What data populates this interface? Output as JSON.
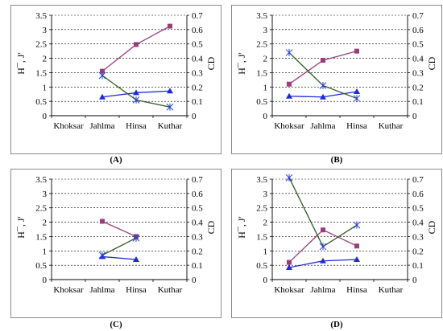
{
  "chart_data": [
    {
      "type": "line",
      "caption": "(A)",
      "categories": [
        "Khoksar",
        "Jahlma",
        "Hinsa",
        "Kuthar"
      ],
      "ylabel_left": "H¯, J'",
      "ylabel_right": "CD",
      "ylim_left": [
        0,
        3.5
      ],
      "ylim_right": [
        0,
        0.7
      ],
      "yticks_left": [
        "0",
        "0.5",
        "1",
        "1.5",
        "2",
        "2.5",
        "3",
        "3.5"
      ],
      "yticks_right": [
        "0",
        "0.1",
        "0.2",
        "0.3",
        "0.4",
        "0.5",
        "0.6",
        "0.7"
      ],
      "grid": true,
      "series": [
        {
          "axis": "left",
          "color": "#9b3d7a",
          "marker": "square",
          "values": [
            null,
            1.55,
            2.48,
            3.12
          ]
        },
        {
          "axis": "left",
          "color": "#1f2bd6",
          "marker": "triangle",
          "values": [
            null,
            0.65,
            0.8,
            0.86
          ]
        },
        {
          "axis": "right",
          "color": "#2e5e1e",
          "marker": "star",
          "values": [
            null,
            0.28,
            0.11,
            0.06
          ]
        }
      ]
    },
    {
      "type": "line",
      "caption": "(B)",
      "categories": [
        "Khoksar",
        "Jahlma",
        "Hinsa",
        "Kuthar"
      ],
      "ylabel_left": "H¯, J'",
      "ylabel_right": "CD",
      "ylim_left": [
        0,
        3.5
      ],
      "ylim_right": [
        0,
        0.7
      ],
      "yticks_left": [
        "0",
        "0.5",
        "1",
        "1.5",
        "2",
        "2.5",
        "3",
        "3.5"
      ],
      "yticks_right": [
        "0",
        "0.1",
        "0.2",
        "0.3",
        "0.4",
        "0.5",
        "0.6",
        "0.7"
      ],
      "grid": true,
      "series": [
        {
          "axis": "left",
          "color": "#9b3d7a",
          "marker": "square",
          "values": [
            1.1,
            1.93,
            2.25,
            null
          ]
        },
        {
          "axis": "left",
          "color": "#1f2bd6",
          "marker": "triangle",
          "values": [
            0.68,
            0.65,
            0.84,
            null
          ]
        },
        {
          "axis": "right",
          "color": "#2e5e1e",
          "marker": "star",
          "values": [
            0.44,
            0.21,
            0.12,
            null
          ]
        }
      ]
    },
    {
      "type": "line",
      "caption": "(C)",
      "categories": [
        "Khoksar",
        "Jahlma",
        "Hinsa",
        "Kuthar"
      ],
      "ylabel_left": "H¯, J'",
      "ylabel_right": "CD",
      "ylim_left": [
        0,
        3.5
      ],
      "ylim_right": [
        0,
        0.7
      ],
      "yticks_left": [
        "0",
        "0.5",
        "1",
        "1.5",
        "2",
        "2.5",
        "3",
        "3.5"
      ],
      "yticks_right": [
        "0",
        "0.1",
        "0.2",
        "0.3",
        "0.4",
        "0.5",
        "0.6",
        "0.7"
      ],
      "grid": true,
      "series": [
        {
          "axis": "left",
          "color": "#9b3d7a",
          "marker": "square",
          "values": [
            null,
            2.03,
            1.5,
            null
          ]
        },
        {
          "axis": "left",
          "color": "#1f2bd6",
          "marker": "triangle",
          "values": [
            null,
            0.8,
            0.7,
            null
          ]
        },
        {
          "axis": "right",
          "color": "#2e5e1e",
          "marker": "star",
          "values": [
            null,
            0.17,
            0.29,
            null
          ]
        }
      ]
    },
    {
      "type": "line",
      "caption": "(D)",
      "categories": [
        "Khoksar",
        "Jahlma",
        "Hinsa",
        "Kuthar"
      ],
      "ylabel_left": "H¯, J'",
      "ylabel_right": "CD",
      "ylim_left": [
        0,
        3.5
      ],
      "ylim_right": [
        0,
        0.7
      ],
      "yticks_left": [
        "0",
        "0.5",
        "1",
        "1.5",
        "2",
        "2.5",
        "3",
        "3.5"
      ],
      "yticks_right": [
        "0",
        "0.1",
        "0.2",
        "0.3",
        "0.4",
        "0.5",
        "0.6",
        "0.7"
      ],
      "grid": true,
      "series": [
        {
          "axis": "left",
          "color": "#9b3d7a",
          "marker": "square",
          "values": [
            0.6,
            1.73,
            1.17,
            null
          ]
        },
        {
          "axis": "left",
          "color": "#1f2bd6",
          "marker": "triangle",
          "values": [
            0.42,
            0.65,
            0.7,
            null
          ]
        },
        {
          "axis": "right",
          "color": "#2e5e1e",
          "marker": "star",
          "values": [
            0.71,
            0.23,
            0.38,
            null
          ]
        }
      ]
    }
  ]
}
